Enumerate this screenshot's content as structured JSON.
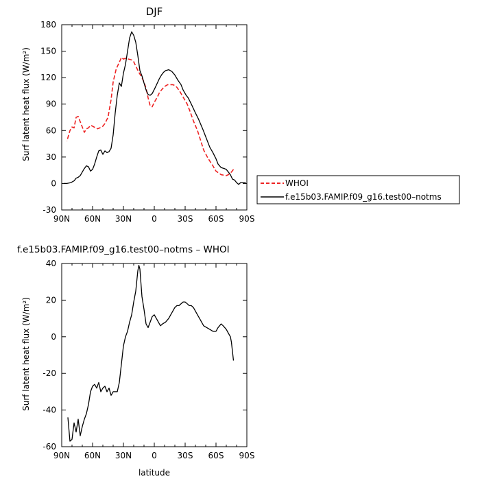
{
  "chart_data": [
    {
      "type": "line",
      "title": "DJF",
      "xlabel": "",
      "ylabel": "Surf latent heat flux (W/m²)",
      "xlim": [
        90,
        -90
      ],
      "ylim": [
        -30,
        180
      ],
      "x_ticks": [
        90,
        60,
        30,
        0,
        -30,
        -60,
        -90
      ],
      "x_tick_labels": [
        "90N",
        "60N",
        "30N",
        "0",
        "30S",
        "60S",
        "90S"
      ],
      "y_ticks": [
        -30,
        0,
        30,
        60,
        90,
        120,
        150,
        180
      ],
      "legend": {
        "placement": "right",
        "entries": [
          "WHOI",
          "f.e15b03.FAMIP.f09_g16.test00–notms"
        ]
      },
      "series": [
        {
          "name": "WHOI",
          "color": "#ee2222",
          "dash": "dashed",
          "points": [
            [
              -77,
              16
            ],
            [
              -75,
              13
            ],
            [
              -72,
              10
            ],
            [
              -70,
              9
            ],
            [
              -65,
              10
            ],
            [
              -60,
              14
            ],
            [
              -57,
              20
            ],
            [
              -52,
              29
            ],
            [
              -48,
              38
            ],
            [
              -45,
              49
            ],
            [
              -42,
              60
            ],
            [
              -38,
              71
            ],
            [
              -35,
              81
            ],
            [
              -32,
              90
            ],
            [
              -28,
              98
            ],
            [
              -25,
              104
            ],
            [
              -22,
              109
            ],
            [
              -20,
              111
            ],
            [
              -18,
              112
            ],
            [
              -15,
              112
            ],
            [
              -13,
              112
            ],
            [
              -10,
              110
            ],
            [
              -7,
              106
            ],
            [
              -5,
              103
            ],
            [
              -3,
              98
            ],
            [
              0,
              92
            ],
            [
              2,
              87
            ],
            [
              4,
              88
            ],
            [
              6,
              97
            ],
            [
              8,
              108
            ],
            [
              10,
              115
            ],
            [
              12,
              120
            ],
            [
              15,
              126
            ],
            [
              18,
              133
            ],
            [
              20,
              138
            ],
            [
              22,
              140
            ],
            [
              25,
              141
            ],
            [
              28,
              142
            ],
            [
              30,
              141
            ],
            [
              32,
              143
            ],
            [
              33,
              140
            ],
            [
              35,
              135
            ],
            [
              37,
              130
            ],
            [
              40,
              115
            ],
            [
              42,
              95
            ],
            [
              45,
              75
            ],
            [
              48,
              68
            ],
            [
              50,
              65
            ],
            [
              53,
              63
            ],
            [
              55,
              62
            ],
            [
              57,
              63
            ],
            [
              60,
              65
            ],
            [
              62,
              66
            ],
            [
              64,
              63
            ],
            [
              66,
              62
            ],
            [
              68,
              58
            ],
            [
              70,
              64
            ],
            [
              72,
              70
            ],
            [
              74,
              76
            ],
            [
              76,
              75
            ],
            [
              78,
              63
            ],
            [
              80,
              64
            ],
            [
              82,
              60
            ],
            [
              84,
              52
            ],
            [
              85,
              48
            ]
          ]
        },
        {
          "name": "f.e15b03.FAMIP.f09_g16.test00–notms",
          "color": "#000000",
          "dash": "solid",
          "points": [
            [
              -89,
              1
            ],
            [
              -87,
              1
            ],
            [
              -84,
              1
            ],
            [
              -82,
              -1
            ],
            [
              -80,
              1
            ],
            [
              -78,
              4
            ],
            [
              -76,
              5
            ],
            [
              -74,
              10
            ],
            [
              -72,
              13
            ],
            [
              -70,
              16
            ],
            [
              -68,
              17
            ],
            [
              -65,
              18
            ],
            [
              -62,
              22
            ],
            [
              -60,
              28
            ],
            [
              -57,
              35
            ],
            [
              -54,
              41
            ],
            [
              -51,
              50
            ],
            [
              -47,
              62
            ],
            [
              -43,
              73
            ],
            [
              -40,
              80
            ],
            [
              -36,
              90
            ],
            [
              -33,
              97
            ],
            [
              -31,
              100
            ],
            [
              -28,
              106
            ],
            [
              -26,
              112
            ],
            [
              -23,
              117
            ],
            [
              -20,
              123
            ],
            [
              -17,
              127
            ],
            [
              -14,
              129
            ],
            [
              -11,
              128
            ],
            [
              -9,
              126
            ],
            [
              -7,
              123
            ],
            [
              -5,
              119
            ],
            [
              -3,
              114
            ],
            [
              -1,
              109
            ],
            [
              2,
              102
            ],
            [
              4,
              100
            ],
            [
              6,
              101
            ],
            [
              8,
              106
            ],
            [
              10,
              114
            ],
            [
              12,
              122
            ],
            [
              14,
              128
            ],
            [
              16,
              145
            ],
            [
              18,
              160
            ],
            [
              20,
              168
            ],
            [
              22,
              172
            ],
            [
              24,
              165
            ],
            [
              26,
              150
            ],
            [
              28,
              135
            ],
            [
              30,
              125
            ],
            [
              32,
              110
            ],
            [
              34,
              114
            ],
            [
              36,
              100
            ],
            [
              38,
              80
            ],
            [
              40,
              55
            ],
            [
              42,
              40
            ],
            [
              44,
              36
            ],
            [
              46,
              35
            ],
            [
              48,
              37
            ],
            [
              50,
              33
            ],
            [
              52,
              38
            ],
            [
              54,
              37
            ],
            [
              56,
              30
            ],
            [
              58,
              22
            ],
            [
              60,
              16
            ],
            [
              62,
              14
            ],
            [
              64,
              19
            ],
            [
              66,
              20
            ],
            [
              68,
              17
            ],
            [
              70,
              13
            ],
            [
              72,
              9
            ],
            [
              74,
              7
            ],
            [
              76,
              6
            ],
            [
              78,
              3
            ],
            [
              81,
              1
            ],
            [
              85,
              0
            ],
            [
              88,
              0
            ]
          ]
        }
      ]
    },
    {
      "type": "line",
      "title": "f.e15b03.FAMIP.f09_g16.test00–notms – WHOI",
      "xlabel": "latitude",
      "ylabel": "Surf latent heat flux (W/m²)",
      "xlim": [
        90,
        -90
      ],
      "ylim": [
        -60,
        40
      ],
      "x_ticks": [
        90,
        60,
        30,
        0,
        -30,
        -60,
        -90
      ],
      "x_tick_labels": [
        "90N",
        "60N",
        "30N",
        "0",
        "30S",
        "60S",
        "90S"
      ],
      "y_ticks": [
        -60,
        -40,
        -20,
        0,
        20,
        40
      ],
      "series": [
        {
          "name": "",
          "color": "#000000",
          "dash": "solid",
          "points": [
            [
              -77,
              -13
            ],
            [
              -75,
              -3
            ],
            [
              -74,
              0
            ],
            [
              -72,
              2
            ],
            [
              -70,
              4
            ],
            [
              -67,
              6
            ],
            [
              -65,
              7
            ],
            [
              -62,
              5
            ],
            [
              -60,
              3
            ],
            [
              -57,
              3
            ],
            [
              -54,
              4
            ],
            [
              -51,
              5
            ],
            [
              -48,
              6
            ],
            [
              -46,
              8
            ],
            [
              -44,
              10
            ],
            [
              -42,
              12
            ],
            [
              -40,
              14
            ],
            [
              -38,
              16
            ],
            [
              -36,
              17
            ],
            [
              -34,
              17
            ],
            [
              -32,
              18
            ],
            [
              -30,
              19
            ],
            [
              -28,
              19
            ],
            [
              -26,
              18
            ],
            [
              -24,
              17
            ],
            [
              -22,
              17
            ],
            [
              -20,
              16
            ],
            [
              -17,
              13
            ],
            [
              -14,
              10
            ],
            [
              -11,
              8
            ],
            [
              -8,
              7
            ],
            [
              -6,
              6
            ],
            [
              -4,
              8
            ],
            [
              -2,
              10
            ],
            [
              0,
              12
            ],
            [
              2,
              11
            ],
            [
              4,
              8
            ],
            [
              6,
              5
            ],
            [
              8,
              7
            ],
            [
              10,
              15
            ],
            [
              12,
              22
            ],
            [
              14,
              37
            ],
            [
              15,
              39
            ],
            [
              16,
              36
            ],
            [
              18,
              25
            ],
            [
              20,
              19
            ],
            [
              22,
              12
            ],
            [
              24,
              8
            ],
            [
              26,
              3
            ],
            [
              28,
              0
            ],
            [
              30,
              -5
            ],
            [
              32,
              -15
            ],
            [
              34,
              -25
            ],
            [
              36,
              -30
            ],
            [
              38,
              -30
            ],
            [
              40,
              -30
            ],
            [
              42,
              -32
            ],
            [
              44,
              -28
            ],
            [
              46,
              -30
            ],
            [
              48,
              -27
            ],
            [
              50,
              -28
            ],
            [
              52,
              -30
            ],
            [
              54,
              -25
            ],
            [
              56,
              -28
            ],
            [
              58,
              -26
            ],
            [
              60,
              -27
            ],
            [
              62,
              -30
            ],
            [
              64,
              -37
            ],
            [
              66,
              -42
            ],
            [
              68,
              -45
            ],
            [
              70,
              -49
            ],
            [
              72,
              -54
            ],
            [
              74,
              -45
            ],
            [
              76,
              -52
            ],
            [
              78,
              -47
            ],
            [
              80,
              -56
            ],
            [
              82,
              -57
            ],
            [
              84,
              -44
            ]
          ]
        }
      ]
    }
  ]
}
